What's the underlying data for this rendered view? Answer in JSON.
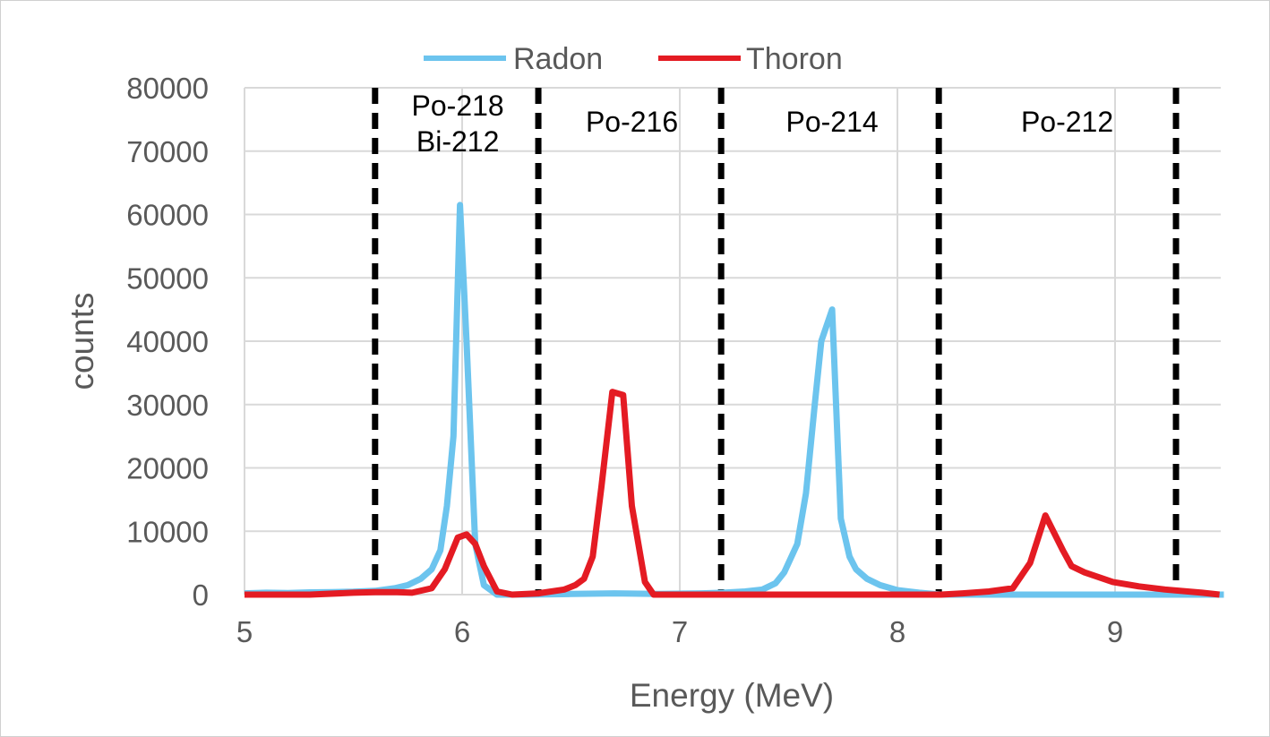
{
  "chart_data": {
    "type": "line",
    "title": "",
    "xlabel": "Energy (MeV)",
    "ylabel": "counts",
    "xlim": [
      5,
      9.5
    ],
    "ylim": [
      0,
      80000
    ],
    "xticks": [
      "5",
      "6",
      "7",
      "8",
      "9"
    ],
    "yticks": [
      "0",
      "10000",
      "20000",
      "30000",
      "40000",
      "50000",
      "60000",
      "70000",
      "80000"
    ],
    "grid": true,
    "legend": {
      "placement": "top-center",
      "entries": [
        "Radon",
        "Thoron"
      ]
    },
    "colors": {
      "Radon": "#6cc4ee",
      "Thoron": "#e41b23",
      "dividers": "#000000",
      "grid": "#d9d9d9"
    },
    "series": [
      {
        "name": "Radon",
        "x": [
          5.0,
          5.1,
          5.2,
          5.3,
          5.4,
          5.5,
          5.6,
          5.69,
          5.75,
          5.81,
          5.86,
          5.9,
          5.93,
          5.96,
          5.99,
          6.02,
          6.06,
          6.1,
          6.16,
          6.3,
          6.5,
          6.7,
          6.9,
          7.1,
          7.2,
          7.3,
          7.38,
          7.44,
          7.48,
          7.54,
          7.58,
          7.62,
          7.65,
          7.7,
          7.74,
          7.78,
          7.81,
          7.86,
          7.92,
          8.0,
          8.1,
          8.2,
          8.5,
          9.0,
          9.3,
          9.5
        ],
        "y": [
          200,
          300,
          250,
          350,
          400,
          450,
          600,
          1000,
          1500,
          2500,
          4000,
          7000,
          14000,
          25000,
          61500,
          40000,
          8000,
          1500,
          0,
          0,
          100,
          200,
          100,
          200,
          300,
          500,
          800,
          1800,
          3500,
          8000,
          16000,
          30000,
          40000,
          45000,
          12000,
          6000,
          4000,
          2500,
          1500,
          700,
          300,
          0,
          0,
          0,
          0,
          0
        ]
      },
      {
        "name": "Thoron",
        "x": [
          5.0,
          5.3,
          5.5,
          5.6,
          5.7,
          5.77,
          5.86,
          5.92,
          5.98,
          6.02,
          6.06,
          6.1,
          6.16,
          6.23,
          6.35,
          6.47,
          6.52,
          6.56,
          6.6,
          6.64,
          6.69,
          6.74,
          6.78,
          6.84,
          6.88,
          7.0,
          7.5,
          8.0,
          8.2,
          8.3,
          8.42,
          8.53,
          8.61,
          8.68,
          8.76,
          8.8,
          8.86,
          8.99,
          9.11,
          9.23,
          9.4,
          9.48
        ],
        "y": [
          0,
          0,
          300,
          400,
          400,
          300,
          1000,
          4000,
          9000,
          9500,
          8000,
          4500,
          500,
          0,
          200,
          800,
          1500,
          2500,
          6000,
          17000,
          32000,
          31500,
          14000,
          2000,
          0,
          0,
          0,
          0,
          0,
          200,
          500,
          1000,
          5000,
          12500,
          7000,
          4500,
          3500,
          2000,
          1300,
          800,
          300,
          0
        ]
      }
    ],
    "dividers_x": [
      5.6,
      6.35,
      7.19,
      8.19,
      9.28
    ],
    "regions": [
      {
        "lines": [
          "Po-218",
          "Bi-212"
        ],
        "x": 5.98
      },
      {
        "lines": [
          "Po-216"
        ],
        "x": 6.78
      },
      {
        "lines": [
          "Po-214"
        ],
        "x": 7.7
      },
      {
        "lines": [
          "Po-212"
        ],
        "x": 8.78
      }
    ]
  }
}
